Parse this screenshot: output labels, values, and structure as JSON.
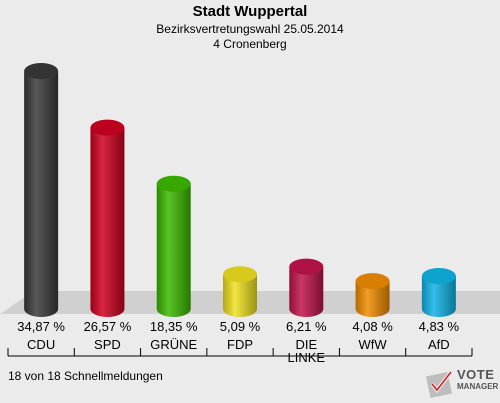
{
  "header": {
    "title": "Stadt Wuppertal",
    "subtitle": "Bezirksvertretungswahl 25.05.2014",
    "subtitle2": "4 Cronenberg"
  },
  "footer": {
    "text": "18 von 18 Schnellmeldungen"
  },
  "logo": {
    "line1": "VOTE",
    "line2": "MANAGER"
  },
  "chart_data": {
    "type": "bar",
    "title": "Stadt Wuppertal",
    "categories": [
      "CDU",
      "SPD",
      "GRÜNE",
      "FDP",
      "DIE LINKE",
      "WfW",
      "AfD"
    ],
    "category_lines": [
      [
        "CDU"
      ],
      [
        "SPD"
      ],
      [
        "GRÜNE"
      ],
      [
        "FDP"
      ],
      [
        "DIE",
        "LINKE"
      ],
      [
        "WfW"
      ],
      [
        "AfD"
      ]
    ],
    "values": [
      34.87,
      26.57,
      18.35,
      5.09,
      6.21,
      4.08,
      4.83
    ],
    "labels": [
      "34,87 %",
      "26,57 %",
      "18,35 %",
      "5,09 %",
      "6,21 %",
      "4,08 %",
      "4,83 %"
    ],
    "colors": [
      "#3a3a3a",
      "#d00020",
      "#3cb800",
      "#f0e020",
      "#c0144a",
      "#f08c00",
      "#10b4e6"
    ],
    "ylim": [
      0,
      34.87
    ],
    "grid": false,
    "legend": "none"
  }
}
